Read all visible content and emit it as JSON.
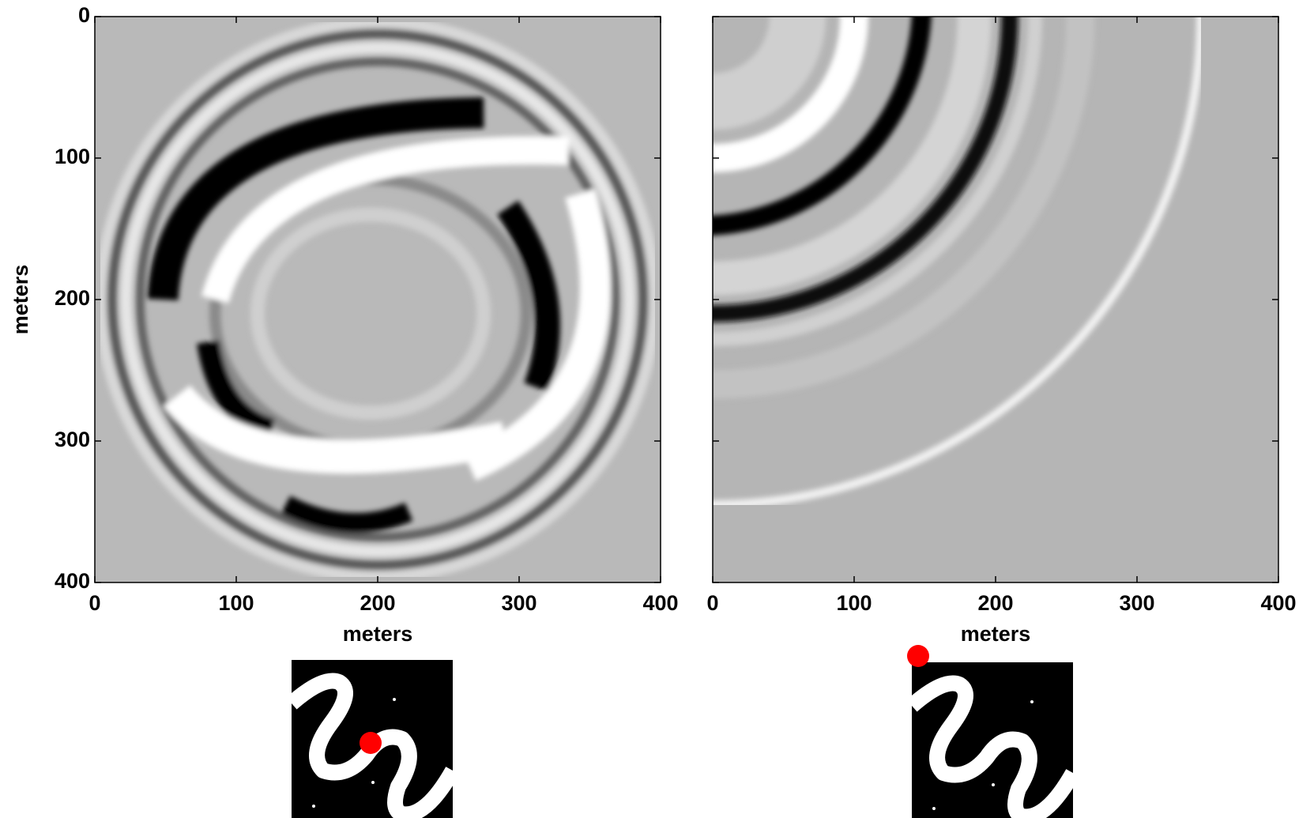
{
  "chart_data": [
    {
      "type": "heatmap",
      "xlabel": "meters",
      "ylabel": "meters",
      "xlim": [
        0,
        400
      ],
      "ylim": [
        400,
        0
      ],
      "xticks": [
        0,
        100,
        200,
        300,
        400
      ],
      "yticks": [
        0,
        100,
        200,
        300,
        400
      ]
    },
    {
      "type": "heatmap",
      "xlabel": "meters",
      "xlim": [
        0,
        400
      ],
      "ylim": [
        400,
        0
      ],
      "xticks": [
        0,
        100,
        200,
        300,
        400
      ],
      "yticks": [
        0,
        100,
        200,
        300,
        400
      ]
    }
  ]
}
